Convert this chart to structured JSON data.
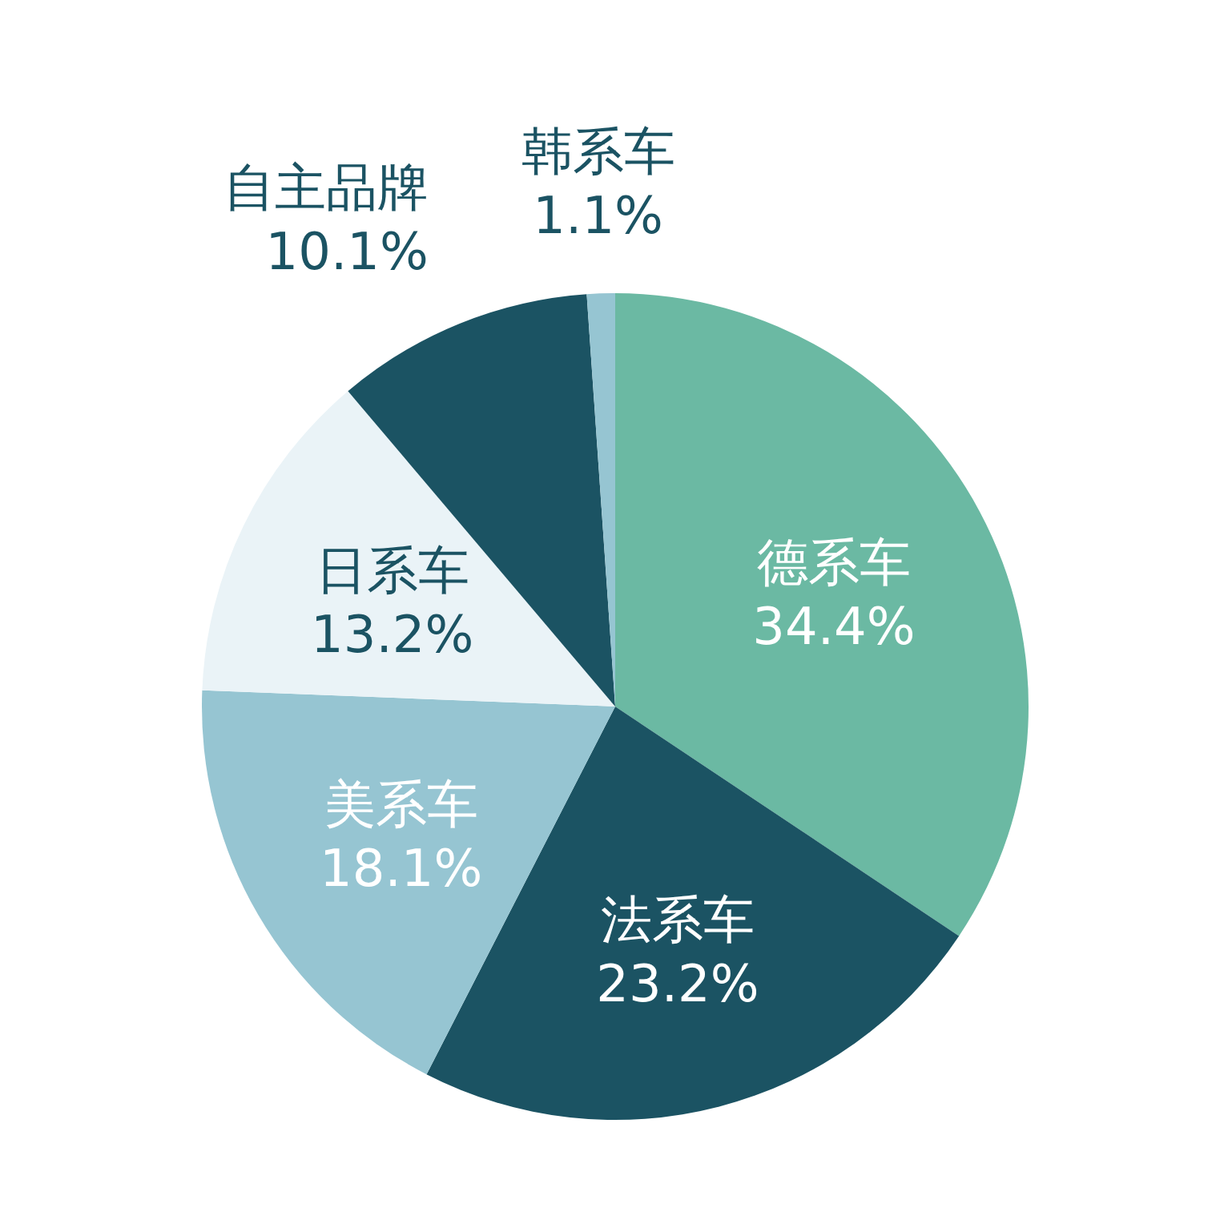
{
  "chart_data": {
    "type": "pie",
    "categories": [
      "德系车",
      "法系车",
      "美系车",
      "日系车",
      "自主品牌",
      "韩系车"
    ],
    "values": [
      34.4,
      23.2,
      18.1,
      13.2,
      10.1,
      1.1
    ],
    "colors": [
      "#6bb9a3",
      "#1b5363",
      "#96c5d2",
      "#eaf3f7",
      "#1b5363",
      "#96c5d2"
    ],
    "value_labels": [
      "34.4%",
      "23.2%",
      "18.1%",
      "13.2%",
      "10.1%",
      "1.1%"
    ]
  }
}
